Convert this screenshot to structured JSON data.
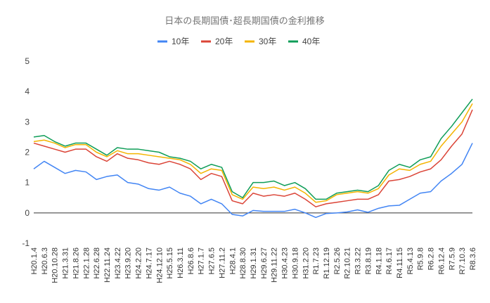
{
  "chart_data": {
    "type": "line",
    "title": "日本の長期国債･超長期国債の金利推移",
    "categories": [
      "H20.1.4",
      "H20.6.3",
      "H20.10.28",
      "H21.3.31",
      "H21.8.26",
      "H22.1.28",
      "H22.6.28",
      "H22.11.24",
      "H23.4.22",
      "H23.9.20",
      "H24.2.20",
      "H24.7.17",
      "H24.12.10",
      "H25.5.15",
      "H26.3.11",
      "H26.8.6",
      "H27.1.7",
      "H27.6.5",
      "H27.11.2",
      "H28.4.1",
      "H28.8.30",
      "H29.1.31",
      "H29.6.27",
      "H29.11.22",
      "H30.4.23",
      "H30.9.18",
      "H31.2.20",
      "R1.7.23",
      "R1.12.19",
      "R2.5.26",
      "R2.10.21",
      "R3.3.22",
      "R3.8.19",
      "R4.1.18",
      "R4.6.17",
      "R4.11.15",
      "R5.4.13",
      "R5.9.8",
      "R6.2.8",
      "R6.12.4",
      "R7.5.9",
      "R7.10.3",
      "R8.3.6"
    ],
    "series": [
      {
        "name": "10年",
        "color": "#4285f4",
        "values": [
          1.45,
          1.7,
          1.5,
          1.3,
          1.4,
          1.35,
          1.1,
          1.2,
          1.25,
          1.0,
          0.95,
          0.8,
          0.75,
          0.85,
          0.65,
          0.55,
          0.3,
          0.45,
          0.3,
          -0.05,
          -0.1,
          0.08,
          0.05,
          0.05,
          0.05,
          0.12,
          0.0,
          -0.15,
          -0.02,
          0.0,
          0.03,
          0.1,
          0.02,
          0.15,
          0.23,
          0.25,
          0.45,
          0.65,
          0.7,
          1.05,
          1.3,
          1.6,
          2.3
        ]
      },
      {
        "name": "20年",
        "color": "#db4437",
        "values": [
          2.3,
          2.2,
          2.1,
          2.0,
          2.1,
          2.1,
          1.85,
          1.7,
          1.95,
          1.8,
          1.75,
          1.65,
          1.6,
          1.7,
          1.6,
          1.45,
          1.1,
          1.3,
          1.2,
          0.4,
          0.3,
          0.65,
          0.55,
          0.6,
          0.55,
          0.65,
          0.45,
          0.2,
          0.3,
          0.35,
          0.4,
          0.45,
          0.45,
          0.6,
          1.05,
          1.1,
          1.2,
          1.35,
          1.45,
          1.75,
          2.2,
          2.6,
          3.4
        ]
      },
      {
        "name": "30年",
        "color": "#f4b400",
        "values": [
          2.35,
          2.4,
          2.3,
          2.15,
          2.25,
          2.25,
          2.0,
          1.85,
          2.05,
          1.95,
          1.95,
          1.9,
          1.85,
          1.8,
          1.75,
          1.6,
          1.3,
          1.45,
          1.4,
          0.6,
          0.45,
          0.85,
          0.8,
          0.85,
          0.75,
          0.85,
          0.65,
          0.35,
          0.4,
          0.6,
          0.65,
          0.7,
          0.65,
          0.8,
          1.25,
          1.45,
          1.4,
          1.6,
          1.7,
          2.2,
          2.6,
          3.0,
          3.6
        ]
      },
      {
        "name": "40年",
        "color": "#0f9d58",
        "values": [
          2.5,
          2.55,
          2.35,
          2.2,
          2.3,
          2.3,
          2.1,
          1.9,
          2.15,
          2.1,
          2.1,
          2.05,
          2.0,
          1.85,
          1.8,
          1.7,
          1.45,
          1.6,
          1.5,
          0.7,
          0.5,
          1.0,
          1.0,
          1.05,
          0.9,
          1.0,
          0.8,
          0.45,
          0.45,
          0.65,
          0.7,
          0.75,
          0.7,
          0.9,
          1.4,
          1.6,
          1.5,
          1.75,
          1.85,
          2.45,
          2.85,
          3.3,
          3.75
        ]
      }
    ],
    "ylim": [
      -1,
      5
    ],
    "yticks": [
      -1,
      0,
      1,
      2,
      3,
      4,
      5
    ],
    "grid": false,
    "legend": "top"
  }
}
